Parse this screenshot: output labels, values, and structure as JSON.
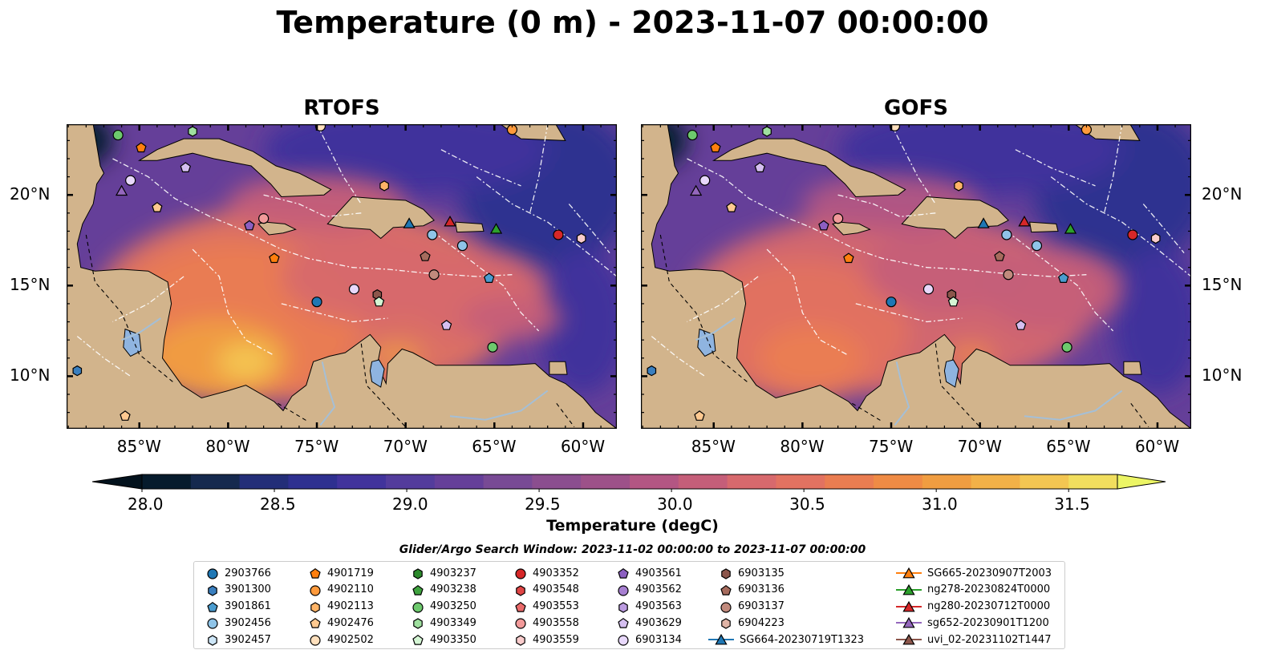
{
  "title": "Temperature (0 m) - 2023-11-07 00:00:00",
  "panels": [
    {
      "id": "rtofs",
      "title": "RTOFS",
      "mode": "warm"
    },
    {
      "id": "gofs",
      "title": "GOFS",
      "mode": "cool"
    }
  ],
  "axes": {
    "lon_ticks": [
      "85°W",
      "80°W",
      "75°W",
      "70°W",
      "65°W",
      "60°W"
    ],
    "lat_ticks": [
      "20°N",
      "15°N",
      "10°N"
    ]
  },
  "colorbar": {
    "label": "Temperature (degC)",
    "ticks": [
      "28.0",
      "28.5",
      "29.0",
      "29.5",
      "30.0",
      "30.5",
      "31.0",
      "31.5"
    ],
    "colors": [
      "#061b2c",
      "#15294e",
      "#232e78",
      "#2e3090",
      "#41339c",
      "#533c9c",
      "#653f99",
      "#784a95",
      "#8b4e8f",
      "#9d5189",
      "#b35683",
      "#c55e79",
      "#d7696d",
      "#e27261",
      "#ea7d51",
      "#ef8b45",
      "#f09d41",
      "#f2b148",
      "#f3c652",
      "#f1de5e"
    ],
    "extend_low": "#03121d",
    "extend_high": "#ecf565"
  },
  "map_colors": {
    "land": "#d2b48c",
    "lake": "#8fb4e0",
    "river": "#a5bfd6"
  },
  "search_window": "Glider/Argo Search Window: 2023-11-02 00:00:00 to 2023-11-07 00:00:00",
  "legend": [
    {
      "label": "2903766",
      "marker": "circle",
      "color": "#1f77b4"
    },
    {
      "label": "3901300",
      "marker": "hexagon",
      "color": "#3a7fbf"
    },
    {
      "label": "3901861",
      "marker": "pentagon",
      "color": "#4a9ccf"
    },
    {
      "label": "3902456",
      "marker": "circle",
      "color": "#8fc4e8"
    },
    {
      "label": "3902457",
      "marker": "hexagon",
      "color": "#cde6f7"
    },
    {
      "label": "4901719",
      "marker": "pentagon",
      "color": "#ff7f0e"
    },
    {
      "label": "4902110",
      "marker": "circle",
      "color": "#ff9a3c"
    },
    {
      "label": "4902113",
      "marker": "hexagon",
      "color": "#ffb467"
    },
    {
      "label": "4902476",
      "marker": "pentagon",
      "color": "#ffc990"
    },
    {
      "label": "4902502",
      "marker": "circle",
      "color": "#ffe0bd"
    },
    {
      "label": "4903237",
      "marker": "hexagon",
      "color": "#2c8a2c"
    },
    {
      "label": "4903238",
      "marker": "pentagon",
      "color": "#3fa33f"
    },
    {
      "label": "4903250",
      "marker": "circle",
      "color": "#6dc96d"
    },
    {
      "label": "4903349",
      "marker": "hexagon",
      "color": "#9fe09f"
    },
    {
      "label": "4903350",
      "marker": "pentagon",
      "color": "#d4f5d4"
    },
    {
      "label": "4903352",
      "marker": "circle",
      "color": "#d62728"
    },
    {
      "label": "4903548",
      "marker": "hexagon",
      "color": "#e04545"
    },
    {
      "label": "4903553",
      "marker": "pentagon",
      "color": "#ea6a6a"
    },
    {
      "label": "4903558",
      "marker": "circle",
      "color": "#f29a9a"
    },
    {
      "label": "4903559",
      "marker": "hexagon",
      "color": "#f9cccc"
    },
    {
      "label": "4903561",
      "marker": "pentagon",
      "color": "#8c5fc1"
    },
    {
      "label": "4903562",
      "marker": "circle",
      "color": "#a77fd1"
    },
    {
      "label": "4903563",
      "marker": "hexagon",
      "color": "#bb9be0"
    },
    {
      "label": "4903629",
      "marker": "pentagon",
      "color": "#d5bff0"
    },
    {
      "label": "6903134",
      "marker": "circle",
      "color": "#e8d8fb"
    },
    {
      "label": "6903135",
      "marker": "hexagon",
      "color": "#8c564b"
    },
    {
      "label": "6903136",
      "marker": "pentagon",
      "color": "#a66b5d"
    },
    {
      "label": "6903137",
      "marker": "circle",
      "color": "#c18a7d"
    },
    {
      "label": "6904223",
      "marker": "hexagon",
      "color": "#e0b4a6"
    },
    {
      "label": "SG664-20230719T1323",
      "marker": "triangle-line",
      "color": "#1f77b4"
    },
    {
      "label": "SG665-20230907T2003",
      "marker": "triangle-line",
      "color": "#ff7f0e"
    },
    {
      "label": "ng278-20230824T0000",
      "marker": "triangle-line",
      "color": "#2ca02c"
    },
    {
      "label": "ng280-20230712T0000",
      "marker": "triangle-line",
      "color": "#d62728"
    },
    {
      "label": "sg652-20230901T1200",
      "marker": "triangle-line",
      "color": "#9467bd"
    },
    {
      "label": "uvi_02-20231102T1447",
      "marker": "triangle-line",
      "color": "#8c564b"
    }
  ],
  "markers": [
    {
      "legend": 12,
      "lon": -86.2,
      "lat": 23.3
    },
    {
      "legend": 5,
      "lon": -84.9,
      "lat": 22.6
    },
    {
      "legend": 13,
      "lon": -82.0,
      "lat": 23.5
    },
    {
      "legend": 9,
      "lon": -74.8,
      "lat": 23.8
    },
    {
      "legend": 6,
      "lon": -64.0,
      "lat": 23.6
    },
    {
      "legend": 24,
      "lon": -85.5,
      "lat": 20.8
    },
    {
      "legend": 23,
      "lon": -82.4,
      "lat": 21.5
    },
    {
      "legend": 33,
      "lon": -86.0,
      "lat": 20.2
    },
    {
      "legend": 8,
      "lon": -84.0,
      "lat": 19.3
    },
    {
      "legend": 20,
      "lon": -78.8,
      "lat": 18.3
    },
    {
      "legend": 18,
      "lon": -78.0,
      "lat": 18.7
    },
    {
      "legend": 7,
      "lon": -71.2,
      "lat": 20.5
    },
    {
      "legend": 5,
      "lon": -77.4,
      "lat": 16.5
    },
    {
      "legend": 29,
      "lon": -69.8,
      "lat": 18.4
    },
    {
      "legend": 32,
      "lon": -67.5,
      "lat": 18.5
    },
    {
      "legend": 3,
      "lon": -68.5,
      "lat": 17.8
    },
    {
      "legend": 3,
      "lon": -66.8,
      "lat": 17.2
    },
    {
      "legend": 31,
      "lon": -64.9,
      "lat": 18.1
    },
    {
      "legend": 15,
      "lon": -61.4,
      "lat": 17.8
    },
    {
      "legend": 19,
      "lon": -60.1,
      "lat": 17.6
    },
    {
      "legend": 26,
      "lon": -68.9,
      "lat": 16.6
    },
    {
      "legend": 27,
      "lon": -68.4,
      "lat": 15.6
    },
    {
      "legend": 2,
      "lon": -65.3,
      "lat": 15.4
    },
    {
      "legend": 24,
      "lon": -72.9,
      "lat": 14.8
    },
    {
      "legend": 25,
      "lon": -71.6,
      "lat": 14.5
    },
    {
      "legend": 14,
      "lon": -71.5,
      "lat": 14.1
    },
    {
      "legend": 0,
      "lon": -75.0,
      "lat": 14.1
    },
    {
      "legend": 23,
      "lon": -67.7,
      "lat": 12.8
    },
    {
      "legend": 12,
      "lon": -65.1,
      "lat": 11.6
    },
    {
      "legend": 1,
      "lon": -88.5,
      "lat": 10.3
    },
    {
      "legend": 8,
      "lon": -85.8,
      "lat": 7.8
    }
  ]
}
